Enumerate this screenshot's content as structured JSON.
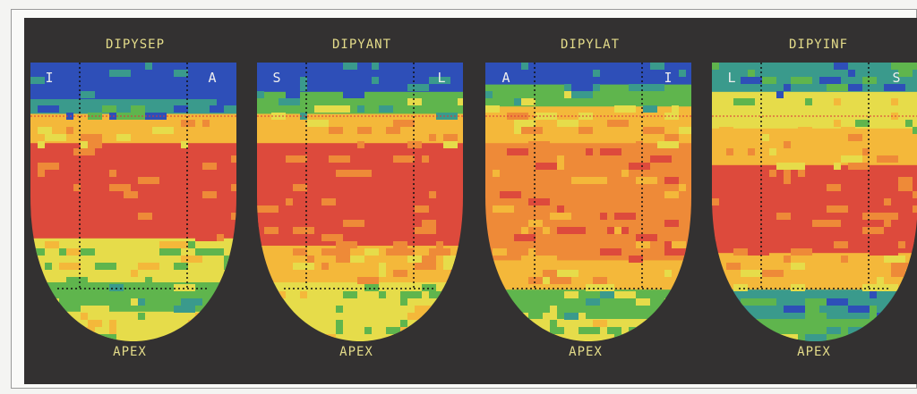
{
  "panels": [
    {
      "title": "DIPYSEP",
      "left_marker": "I",
      "right_marker": "A",
      "apex_label": "APEX"
    },
    {
      "title": "DIPYANT",
      "left_marker": "S",
      "right_marker": "L",
      "apex_label": "APEX"
    },
    {
      "title": "DIPYLAT",
      "left_marker": "A",
      "right_marker": "I",
      "apex_label": "APEX"
    },
    {
      "title": "DIPYINF",
      "left_marker": "L",
      "right_marker": "S",
      "apex_label": "APEX"
    }
  ],
  "colors": {
    "background": "#333131",
    "label": "#e4dc8a",
    "marker": "#eeeeee",
    "scale": [
      "#2e4fb8",
      "#3a9a8c",
      "#5fb54d",
      "#e6dc4a",
      "#f4b83a",
      "#ee8a38",
      "#dd4a3c"
    ],
    "guide_line": "#d9343a",
    "dotted_grid": "#111111"
  }
}
